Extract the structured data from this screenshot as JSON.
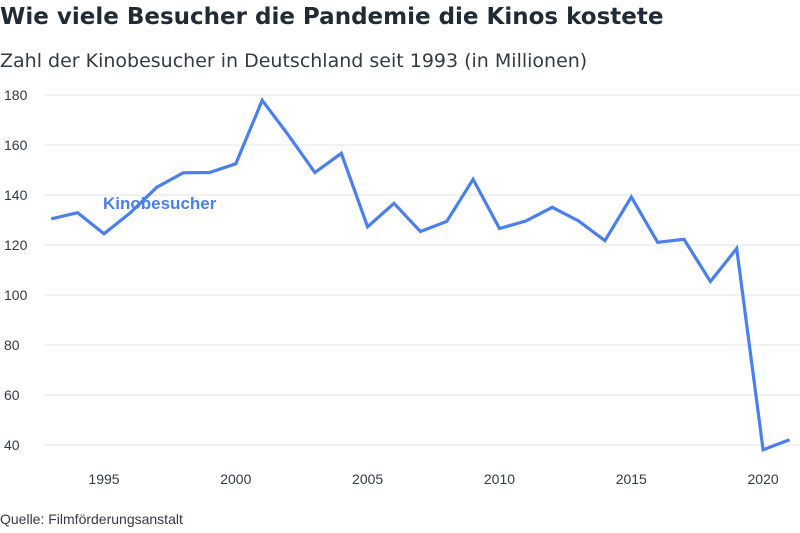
{
  "header": {
    "title": "Wie viele Besucher die Pandemie die Kinos kostete",
    "subtitle": "Zahl der Kinobesucher in Deutschland seit 1993 (in Millionen)"
  },
  "footer": {
    "source": "Quelle: Filmförderungsanstalt"
  },
  "colors": {
    "series": "#4a7fef",
    "grid": "#e3e5e8",
    "text": "#333a42"
  },
  "chart_data": {
    "type": "line",
    "title": "Wie viele Besucher die Pandemie die Kinos kostete",
    "subtitle": "Zahl der Kinobesucher in Deutschland seit 1993 (in Millionen)",
    "xlabel": "",
    "ylabel": "",
    "xlim": [
      1992.8,
      2021.4
    ],
    "ylim": [
      30,
      182
    ],
    "x_ticks": [
      1995,
      2000,
      2005,
      2010,
      2015,
      2020
    ],
    "y_ticks": [
      40,
      60,
      80,
      100,
      120,
      140,
      160,
      180
    ],
    "grid": true,
    "legend": "none",
    "series": [
      {
        "name": "Kinobesucher",
        "x": [
          1993,
          1994,
          1995,
          1996,
          1997,
          1998,
          1999,
          2000,
          2001,
          2002,
          2003,
          2004,
          2005,
          2006,
          2007,
          2008,
          2009,
          2010,
          2011,
          2012,
          2013,
          2014,
          2015,
          2016,
          2017,
          2018,
          2019,
          2020,
          2021
        ],
        "values": [
          130.5,
          132.9,
          124.5,
          132.9,
          143.1,
          148.9,
          149.0,
          152.5,
          177.9,
          163.9,
          149.0,
          156.7,
          127.3,
          136.7,
          125.4,
          129.4,
          146.3,
          126.6,
          129.6,
          135.1,
          129.7,
          121.7,
          139.2,
          121.1,
          122.3,
          105.4,
          118.6,
          38.1,
          42.1
        ]
      }
    ]
  }
}
